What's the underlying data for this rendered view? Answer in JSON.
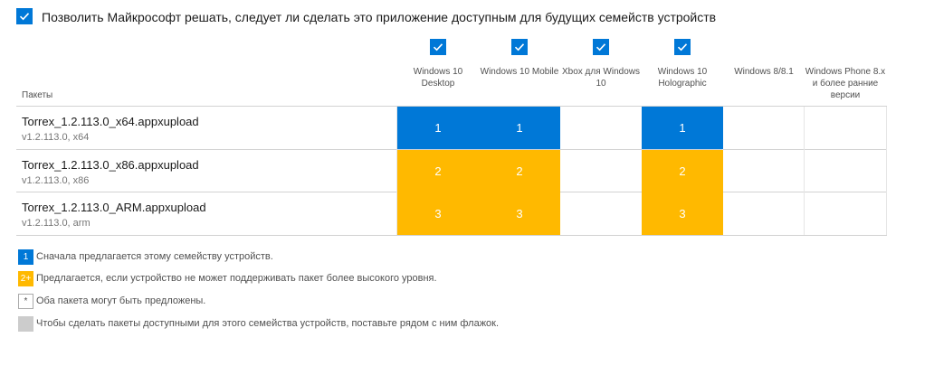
{
  "top_option": {
    "checked": true,
    "label": "Позволить Майкрософт решать, следует ли сделать это приложение доступным для будущих семейств устройств"
  },
  "table": {
    "packages_header": "Пакеты",
    "columns": [
      {
        "label": "Windows 10 Desktop",
        "checked": true
      },
      {
        "label": "Windows 10 Mobile",
        "checked": true
      },
      {
        "label": "Xbox для Windows 10",
        "checked": true
      },
      {
        "label": "Windows 10 Holographic",
        "checked": true
      },
      {
        "label": "Windows 8/8.1",
        "checked": false
      },
      {
        "label": "Windows Phone 8.x и более ранние версии",
        "checked": false
      }
    ],
    "rows": [
      {
        "name": "Torrex_1.2.113.0_x64.appxupload",
        "sub": "v1.2.113.0, x64",
        "cells": [
          "1",
          "1",
          "",
          "1",
          "",
          ""
        ]
      },
      {
        "name": "Torrex_1.2.113.0_x86.appxupload",
        "sub": "v1.2.113.0, x86",
        "cells": [
          "2",
          "2",
          "",
          "2",
          "",
          ""
        ]
      },
      {
        "name": "Torrex_1.2.113.0_ARM.appxupload",
        "sub": "v1.2.113.0, arm",
        "cells": [
          "3",
          "3",
          "",
          "3",
          "",
          ""
        ]
      }
    ]
  },
  "legend": [
    {
      "icon_text": "1",
      "text": "Сначала предлагается этому семейству устройств.",
      "color": "#0078d7"
    },
    {
      "icon_text": "2+",
      "text": "Предлагается, если устройство не может поддерживать пакет более высокого уровня.",
      "color": "#ffb900"
    },
    {
      "icon_text": "*",
      "text": "Оба пакета могут быть предложены.",
      "color": "#ffffff"
    },
    {
      "icon_text": "",
      "text": "Чтобы сделать пакеты доступными для этого семейства устройств, поставьте рядом с ним флажок.",
      "color": "#cccccc"
    }
  ]
}
